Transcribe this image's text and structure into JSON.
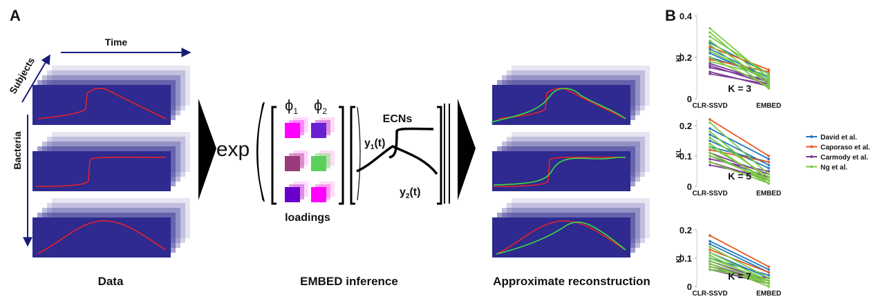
{
  "panel_a": {
    "label": "A",
    "axes": {
      "time": "Time",
      "subjects": "Subjects",
      "bacteria": "Bacteria"
    },
    "exp": "exp",
    "loadings": {
      "phi1": {
        "symbol": "ϕ",
        "subscript": "1"
      },
      "phi2": {
        "symbol": "ϕ",
        "subscript": "2"
      },
      "caption": "loadings"
    },
    "ecns": {
      "title": "ECNs",
      "y1": {
        "symbol": "y",
        "subscript": "1",
        "suffix": "(t)"
      },
      "y2": {
        "symbol": "y",
        "subscript": "2",
        "suffix": "(t)"
      }
    },
    "captions": {
      "data": "Data",
      "inference": "EMBED inference",
      "reconstruction": "Approximate reconstruction"
    }
  },
  "panel_b": {
    "label": "B"
  },
  "chart_data": [
    {
      "type": "slope",
      "ylabel": "KL",
      "annotation": "K = 3",
      "categories": [
        "CLR-SSVD",
        "EMBED"
      ],
      "ylim": [
        0,
        0.4
      ],
      "yticks": [
        0,
        0.2,
        0.4
      ],
      "series": [
        {
          "color": "#1f77c0",
          "lines": [
            [
              0.27,
              0.12
            ],
            [
              0.24,
              0.1
            ],
            [
              0.22,
              0.09
            ],
            [
              0.2,
              0.11
            ]
          ]
        },
        {
          "color": "#e8571f",
          "lines": [
            [
              0.25,
              0.14
            ],
            [
              0.19,
              0.13
            ]
          ]
        },
        {
          "color": "#7d3c98",
          "lines": [
            [
              0.17,
              0.08
            ],
            [
              0.16,
              0.07
            ],
            [
              0.15,
              0.09
            ],
            [
              0.13,
              0.06
            ],
            [
              0.12,
              0.07
            ]
          ]
        },
        {
          "color": "#7ac943",
          "lines": [
            [
              0.34,
              0.1
            ],
            [
              0.32,
              0.08
            ],
            [
              0.3,
              0.12
            ],
            [
              0.28,
              0.07
            ],
            [
              0.26,
              0.05
            ],
            [
              0.23,
              0.09
            ],
            [
              0.2,
              0.06
            ],
            [
              0.18,
              0.11
            ]
          ]
        }
      ]
    },
    {
      "type": "slope",
      "ylabel": "KL",
      "annotation": "K = 5",
      "categories": [
        "CLR-SSVD",
        "EMBED"
      ],
      "ylim": [
        0,
        0.22
      ],
      "yticks": [
        0,
        0.1,
        0.2
      ],
      "series": [
        {
          "name": "David et al.",
          "color": "#1f77c0",
          "lines": [
            [
              0.19,
              0.09
            ],
            [
              0.17,
              0.07
            ],
            [
              0.15,
              0.06
            ],
            [
              0.13,
              0.08
            ]
          ]
        },
        {
          "name": "Caporaso et al.",
          "color": "#e8571f",
          "lines": [
            [
              0.22,
              0.1
            ],
            [
              0.12,
              0.08
            ]
          ]
        },
        {
          "name": "Carmody et al.",
          "color": "#7d3c98",
          "lines": [
            [
              0.11,
              0.04
            ],
            [
              0.1,
              0.03
            ],
            [
              0.09,
              0.05
            ],
            [
              0.08,
              0.02
            ],
            [
              0.07,
              0.03
            ]
          ]
        },
        {
          "name": "Ng et al.",
          "color": "#7ac943",
          "lines": [
            [
              0.21,
              0.04
            ],
            [
              0.18,
              0.02
            ],
            [
              0.16,
              0.03
            ],
            [
              0.14,
              0.01
            ],
            [
              0.13,
              0.02
            ],
            [
              0.11,
              0.01
            ],
            [
              0.1,
              0.02
            ],
            [
              0.08,
              0.01
            ]
          ]
        }
      ]
    },
    {
      "type": "slope",
      "ylabel": "KL",
      "annotation": "K = 7",
      "categories": [
        "CLR-SSVD",
        "EMBED"
      ],
      "ylim": [
        0,
        0.2
      ],
      "yticks": [
        0,
        0.1,
        0.2
      ],
      "series": [
        {
          "color": "#1f77c0",
          "lines": [
            [
              0.16,
              0.06
            ],
            [
              0.15,
              0.05
            ],
            [
              0.12,
              0.03
            ],
            [
              0.1,
              0.04
            ]
          ]
        },
        {
          "color": "#e8571f",
          "lines": [
            [
              0.18,
              0.07
            ],
            [
              0.13,
              0.05
            ]
          ]
        },
        {
          "color": "#7d3c98",
          "lines": [
            [
              0.09,
              0.02
            ],
            [
              0.08,
              0.01
            ],
            [
              0.07,
              0.02
            ],
            [
              0.06,
              0.01
            ],
            [
              0.06,
              0.03
            ]
          ]
        },
        {
          "color": "#7ac943",
          "lines": [
            [
              0.14,
              0.03
            ],
            [
              0.12,
              0.02
            ],
            [
              0.11,
              0.01
            ],
            [
              0.1,
              0.02
            ],
            [
              0.09,
              0.01
            ],
            [
              0.08,
              0.0
            ],
            [
              0.07,
              0.01
            ],
            [
              0.06,
              0.02
            ]
          ]
        }
      ]
    }
  ]
}
